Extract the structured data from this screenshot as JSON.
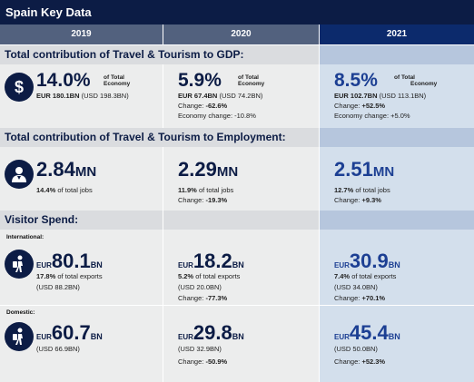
{
  "title": "Spain Key Data",
  "years": [
    "2019",
    "2020",
    "2021"
  ],
  "gdp": {
    "heading": "Total contribution of Travel & Tourism to GDP:",
    "of_total": "of Total",
    "economy": "Economy",
    "y2019": {
      "pct": "14.0%",
      "eur": "EUR 180.1BN",
      "usd": "(USD 198.3BN)"
    },
    "y2020": {
      "pct": "5.9%",
      "eur": "EUR 67.4BN",
      "usd": "(USD 74.2BN)",
      "change_label": "Change:",
      "change": "-62.6%",
      "econ_change": "Economy change: -10.8%"
    },
    "y2021": {
      "pct": "8.5%",
      "eur": "EUR 102.7BN",
      "usd": "(USD 113.1BN)",
      "change_label": "Change:",
      "change": "+52.5%",
      "econ_change": "Economy change: +5.0%"
    }
  },
  "employment": {
    "heading": "Total contribution of Travel & Tourism to Employment:",
    "unit": "MN",
    "total_jobs": "of total jobs",
    "change_label": "Change:",
    "y2019": {
      "value": "2.84",
      "pct": "14.4%"
    },
    "y2020": {
      "value": "2.29",
      "pct": "11.9%",
      "change": "-19.3%"
    },
    "y2021": {
      "value": "2.51",
      "pct": "12.7%",
      "change": "+9.3%"
    }
  },
  "visitor": {
    "heading": "Visitor Spend:",
    "cur": "EUR",
    "unit": "BN",
    "change_label": "Change:",
    "international": {
      "label": "International:",
      "total_exports": "of total exports",
      "y2019": {
        "value": "80.1",
        "pct": "17.8%",
        "usd": "(USD 88.2BN)"
      },
      "y2020": {
        "value": "18.2",
        "pct": "5.2%",
        "usd": "(USD 20.0BN)",
        "change": "-77.3%"
      },
      "y2021": {
        "value": "30.9",
        "pct": "7.4%",
        "usd": "(USD 34.0BN)",
        "change": "+70.1%"
      }
    },
    "domestic": {
      "label": "Domestic:",
      "y2019": {
        "value": "60.7",
        "usd": "(USD 66.9BN)"
      },
      "y2020": {
        "value": "29.8",
        "usd": "(USD 32.9BN)",
        "change": "-50.9%"
      },
      "y2021": {
        "value": "45.4",
        "usd": "(USD 50.0BN)",
        "change": "+52.3%"
      }
    }
  },
  "icons": [
    "dollar-icon",
    "worker-icon",
    "traveler-icon"
  ],
  "colors": {
    "navy": "#0c1c45",
    "blue": "#1c3f93",
    "header_gray": "#52617e",
    "header_blue": "#0c2a6c"
  }
}
